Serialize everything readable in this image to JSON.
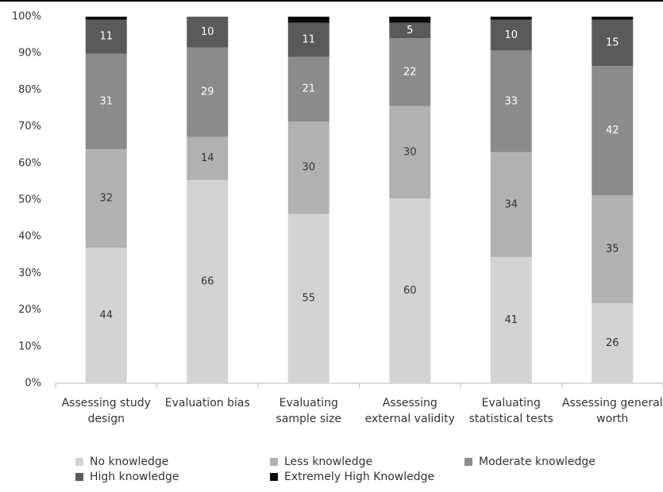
{
  "chart_data": {
    "type": "percent_stacked_bar",
    "categories": [
      "Assessing study design",
      "Evaluation bias",
      "Evaluating sample size",
      "Assessing external validity",
      "Evaluating statistical tests",
      "Assessing general worth"
    ],
    "series": [
      {
        "name": "No knowledge",
        "color": "#d3d3d3",
        "label_color": "#333333",
        "values": [
          44,
          66,
          55,
          60,
          41,
          26
        ]
      },
      {
        "name": "Less knowledge",
        "color": "#b1b1b1",
        "label_color": "#333333",
        "values": [
          32,
          14,
          30,
          30,
          34,
          35
        ]
      },
      {
        "name": "Moderate knowledge",
        "color": "#8b8b8b",
        "label_color": "#ffffff",
        "values": [
          31,
          29,
          21,
          22,
          33,
          42
        ]
      },
      {
        "name": "High knowledge",
        "color": "#5a5a5a",
        "label_color": "#ffffff",
        "values": [
          11,
          10,
          11,
          5,
          10,
          15
        ]
      },
      {
        "name": "Extremely High Knowledge",
        "color": "#0a0a0a",
        "values": [
          1,
          0,
          2,
          2,
          1,
          1
        ]
      }
    ],
    "ylim": [
      0,
      100
    ],
    "yticks": [
      {
        "value": 0,
        "label": "0%"
      },
      {
        "value": 10,
        "label": "10%"
      },
      {
        "value": 20,
        "label": "20%"
      },
      {
        "value": 30,
        "label": "30%"
      },
      {
        "value": 40,
        "label": "40%"
      },
      {
        "value": 50,
        "label": "50%"
      },
      {
        "value": 60,
        "label": "60%"
      },
      {
        "value": 70,
        "label": "70%"
      },
      {
        "value": 80,
        "label": "80%"
      },
      {
        "value": 90,
        "label": "90%"
      },
      {
        "value": 100,
        "label": "100%"
      }
    ],
    "grid": false
  }
}
